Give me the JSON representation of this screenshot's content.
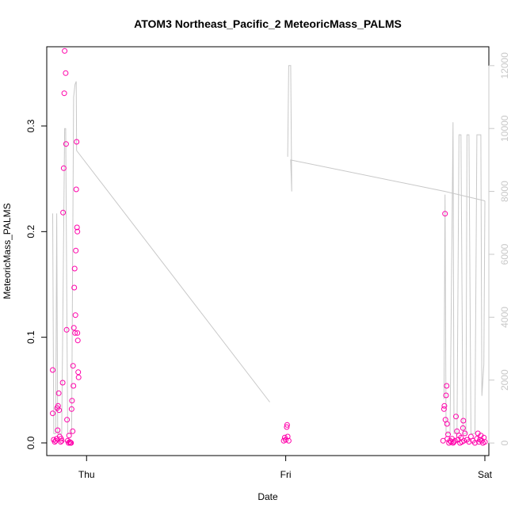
{
  "chart_data": {
    "type": "scatter",
    "title": "ATOM3 Northeast_Pacific_2 MeteoricMass_PALMS",
    "xlabel": "Date",
    "ylabel": "MeteoricMass_PALMS",
    "xlim": [
      -0.2,
      2.02
    ],
    "ylim": [
      -0.012,
      0.375
    ],
    "y2lim": [
      -400,
      12600
    ],
    "x_ticks": [
      {
        "value": 0,
        "label": "Thu"
      },
      {
        "value": 1,
        "label": "Fri"
      },
      {
        "value": 2,
        "label": "Sat"
      }
    ],
    "y_ticks": [
      {
        "value": 0.0,
        "label": "0.0"
      },
      {
        "value": 0.1,
        "label": "0.1"
      },
      {
        "value": 0.2,
        "label": "0.2"
      },
      {
        "value": 0.3,
        "label": "0.3"
      }
    ],
    "y2_ticks": [
      {
        "value": 0,
        "label": "0"
      },
      {
        "value": 2000,
        "label": "2000"
      },
      {
        "value": 4000,
        "label": "4000"
      },
      {
        "value": 6000,
        "label": "6000"
      },
      {
        "value": 8000,
        "label": "8000"
      },
      {
        "value": 10000,
        "label": "10000"
      },
      {
        "value": 12000,
        "label": "12000"
      }
    ],
    "grid": false,
    "colors": {
      "points": "#ff00aa",
      "altitude_line": "#c8c8c8"
    },
    "series": [
      {
        "axis": "left",
        "style": "open-circle",
        "points": [
          {
            "x": -0.17,
            "y": 0.069
          },
          {
            "x": -0.17,
            "y": 0.028
          },
          {
            "x": -0.165,
            "y": 0.003
          },
          {
            "x": -0.16,
            "y": 0.001
          },
          {
            "x": -0.155,
            "y": 0.002
          },
          {
            "x": -0.15,
            "y": 0.004
          },
          {
            "x": -0.148,
            "y": 0.033
          },
          {
            "x": -0.145,
            "y": 0.012
          },
          {
            "x": -0.143,
            "y": 0.035
          },
          {
            "x": -0.14,
            "y": 0.047
          },
          {
            "x": -0.138,
            "y": 0.031
          },
          {
            "x": -0.135,
            "y": 0.006
          },
          {
            "x": -0.13,
            "y": 0.001
          },
          {
            "x": -0.128,
            "y": 0.004
          },
          {
            "x": -0.125,
            "y": 0.002
          },
          {
            "x": -0.12,
            "y": 0.057
          },
          {
            "x": -0.118,
            "y": 0.218
          },
          {
            "x": -0.115,
            "y": 0.26
          },
          {
            "x": -0.112,
            "y": 0.331
          },
          {
            "x": -0.11,
            "y": 0.371
          },
          {
            "x": -0.105,
            "y": 0.35
          },
          {
            "x": -0.103,
            "y": 0.283
          },
          {
            "x": -0.1,
            "y": 0.107
          },
          {
            "x": -0.098,
            "y": 0.022
          },
          {
            "x": -0.095,
            "y": 0.002
          },
          {
            "x": -0.09,
            "y": 0.0
          },
          {
            "x": -0.088,
            "y": 0.007
          },
          {
            "x": -0.085,
            "y": 0.001
          },
          {
            "x": -0.082,
            "y": 0.0
          },
          {
            "x": -0.08,
            "y": 0.0
          },
          {
            "x": -0.078,
            "y": 0.0
          },
          {
            "x": -0.075,
            "y": 0.032
          },
          {
            "x": -0.073,
            "y": 0.04
          },
          {
            "x": -0.07,
            "y": 0.011
          },
          {
            "x": -0.068,
            "y": 0.073
          },
          {
            "x": -0.066,
            "y": 0.054
          },
          {
            "x": -0.064,
            "y": 0.109
          },
          {
            "x": -0.062,
            "y": 0.147
          },
          {
            "x": -0.06,
            "y": 0.165
          },
          {
            "x": -0.058,
            "y": 0.104
          },
          {
            "x": -0.056,
            "y": 0.121
          },
          {
            "x": -0.054,
            "y": 0.182
          },
          {
            "x": -0.052,
            "y": 0.24
          },
          {
            "x": -0.05,
            "y": 0.285
          },
          {
            "x": -0.048,
            "y": 0.204
          },
          {
            "x": -0.046,
            "y": 0.2
          },
          {
            "x": -0.046,
            "y": 0.104
          },
          {
            "x": -0.044,
            "y": 0.097
          },
          {
            "x": -0.042,
            "y": 0.067
          },
          {
            "x": -0.04,
            "y": 0.062
          },
          {
            "x": 0.99,
            "y": 0.002
          },
          {
            "x": 0.995,
            "y": 0.005
          },
          {
            "x": 1.0,
            "y": 0.003
          },
          {
            "x": 1.005,
            "y": 0.015
          },
          {
            "x": 1.007,
            "y": 0.017
          },
          {
            "x": 1.01,
            "y": 0.006
          },
          {
            "x": 1.015,
            "y": 0.002
          },
          {
            "x": 1.79,
            "y": 0.002
          },
          {
            "x": 1.795,
            "y": 0.032
          },
          {
            "x": 1.797,
            "y": 0.035
          },
          {
            "x": 1.8,
            "y": 0.217
          },
          {
            "x": 1.802,
            "y": 0.022
          },
          {
            "x": 1.805,
            "y": 0.045
          },
          {
            "x": 1.808,
            "y": 0.054
          },
          {
            "x": 1.81,
            "y": 0.018
          },
          {
            "x": 1.812,
            "y": 0.004
          },
          {
            "x": 1.815,
            "y": 0.008
          },
          {
            "x": 1.82,
            "y": 0.0
          },
          {
            "x": 1.825,
            "y": 0.002
          },
          {
            "x": 1.83,
            "y": 0.001
          },
          {
            "x": 1.835,
            "y": 0.004
          },
          {
            "x": 1.84,
            "y": 0.0
          },
          {
            "x": 1.845,
            "y": 0.001
          },
          {
            "x": 1.85,
            "y": 0.002
          },
          {
            "x": 1.855,
            "y": 0.025
          },
          {
            "x": 1.86,
            "y": 0.011
          },
          {
            "x": 1.865,
            "y": 0.003
          },
          {
            "x": 1.87,
            "y": 0.007
          },
          {
            "x": 1.875,
            "y": 0.0
          },
          {
            "x": 1.88,
            "y": 0.005
          },
          {
            "x": 1.885,
            "y": 0.001
          },
          {
            "x": 1.89,
            "y": 0.014
          },
          {
            "x": 1.892,
            "y": 0.021
          },
          {
            "x": 1.895,
            "y": 0.002
          },
          {
            "x": 1.9,
            "y": 0.009
          },
          {
            "x": 1.91,
            "y": 0.003
          },
          {
            "x": 1.92,
            "y": 0.001
          },
          {
            "x": 1.93,
            "y": 0.006
          },
          {
            "x": 1.94,
            "y": 0.002
          },
          {
            "x": 1.95,
            "y": 0.0
          },
          {
            "x": 1.96,
            "y": 0.004
          },
          {
            "x": 1.965,
            "y": 0.009
          },
          {
            "x": 1.97,
            "y": 0.001
          },
          {
            "x": 1.975,
            "y": 0.003
          },
          {
            "x": 1.98,
            "y": 0.007
          },
          {
            "x": 1.985,
            "y": 0.002
          },
          {
            "x": 1.99,
            "y": 0.0
          },
          {
            "x": 1.995,
            "y": 0.005
          },
          {
            "x": 2.0,
            "y": 0.001
          }
        ]
      },
      {
        "axis": "right",
        "style": "line",
        "segments": [
          [
            {
              "x": -0.17,
              "y": 7300
            },
            {
              "x": -0.165,
              "y": 300
            },
            {
              "x": -0.155,
              "y": 300
            },
            {
              "x": -0.15,
              "y": 7300
            },
            {
              "x": -0.145,
              "y": 300
            },
            {
              "x": -0.125,
              "y": 300
            },
            {
              "x": -0.11,
              "y": 10000
            },
            {
              "x": -0.105,
              "y": 10000
            },
            {
              "x": -0.095,
              "y": 300
            },
            {
              "x": -0.075,
              "y": 300
            },
            {
              "x": -0.065,
              "y": 11000
            },
            {
              "x": -0.058,
              "y": 11400
            },
            {
              "x": -0.052,
              "y": 11500
            },
            {
              "x": -0.05,
              "y": 9300
            },
            {
              "x": 0.92,
              "y": 1300
            }
          ],
          [
            {
              "x": 1.01,
              "y": 9100
            },
            {
              "x": 1.015,
              "y": 12000
            },
            {
              "x": 1.025,
              "y": 12000
            },
            {
              "x": 1.03,
              "y": 8000
            },
            {
              "x": 1.025,
              "y": 9000
            },
            {
              "x": 1.8,
              "y": 8000
            },
            {
              "x": 2.0,
              "y": 7700
            }
          ],
          [
            {
              "x": 1.795,
              "y": 1400
            },
            {
              "x": 1.8,
              "y": 7900
            },
            {
              "x": 1.805,
              "y": 300
            },
            {
              "x": 1.825,
              "y": 300
            },
            {
              "x": 1.84,
              "y": 10200
            },
            {
              "x": 1.845,
              "y": 300
            },
            {
              "x": 1.86,
              "y": 300
            },
            {
              "x": 1.87,
              "y": 9800
            },
            {
              "x": 1.88,
              "y": 9800
            },
            {
              "x": 1.89,
              "y": 300
            },
            {
              "x": 1.905,
              "y": 300
            },
            {
              "x": 1.91,
              "y": 9800
            },
            {
              "x": 1.92,
              "y": 9800
            },
            {
              "x": 1.93,
              "y": 300
            },
            {
              "x": 1.95,
              "y": 300
            },
            {
              "x": 1.96,
              "y": 9800
            },
            {
              "x": 1.98,
              "y": 9800
            },
            {
              "x": 1.985,
              "y": 1500
            },
            {
              "x": 1.995,
              "y": 2500
            },
            {
              "x": 2.0,
              "y": 7700
            }
          ]
        ]
      }
    ]
  }
}
